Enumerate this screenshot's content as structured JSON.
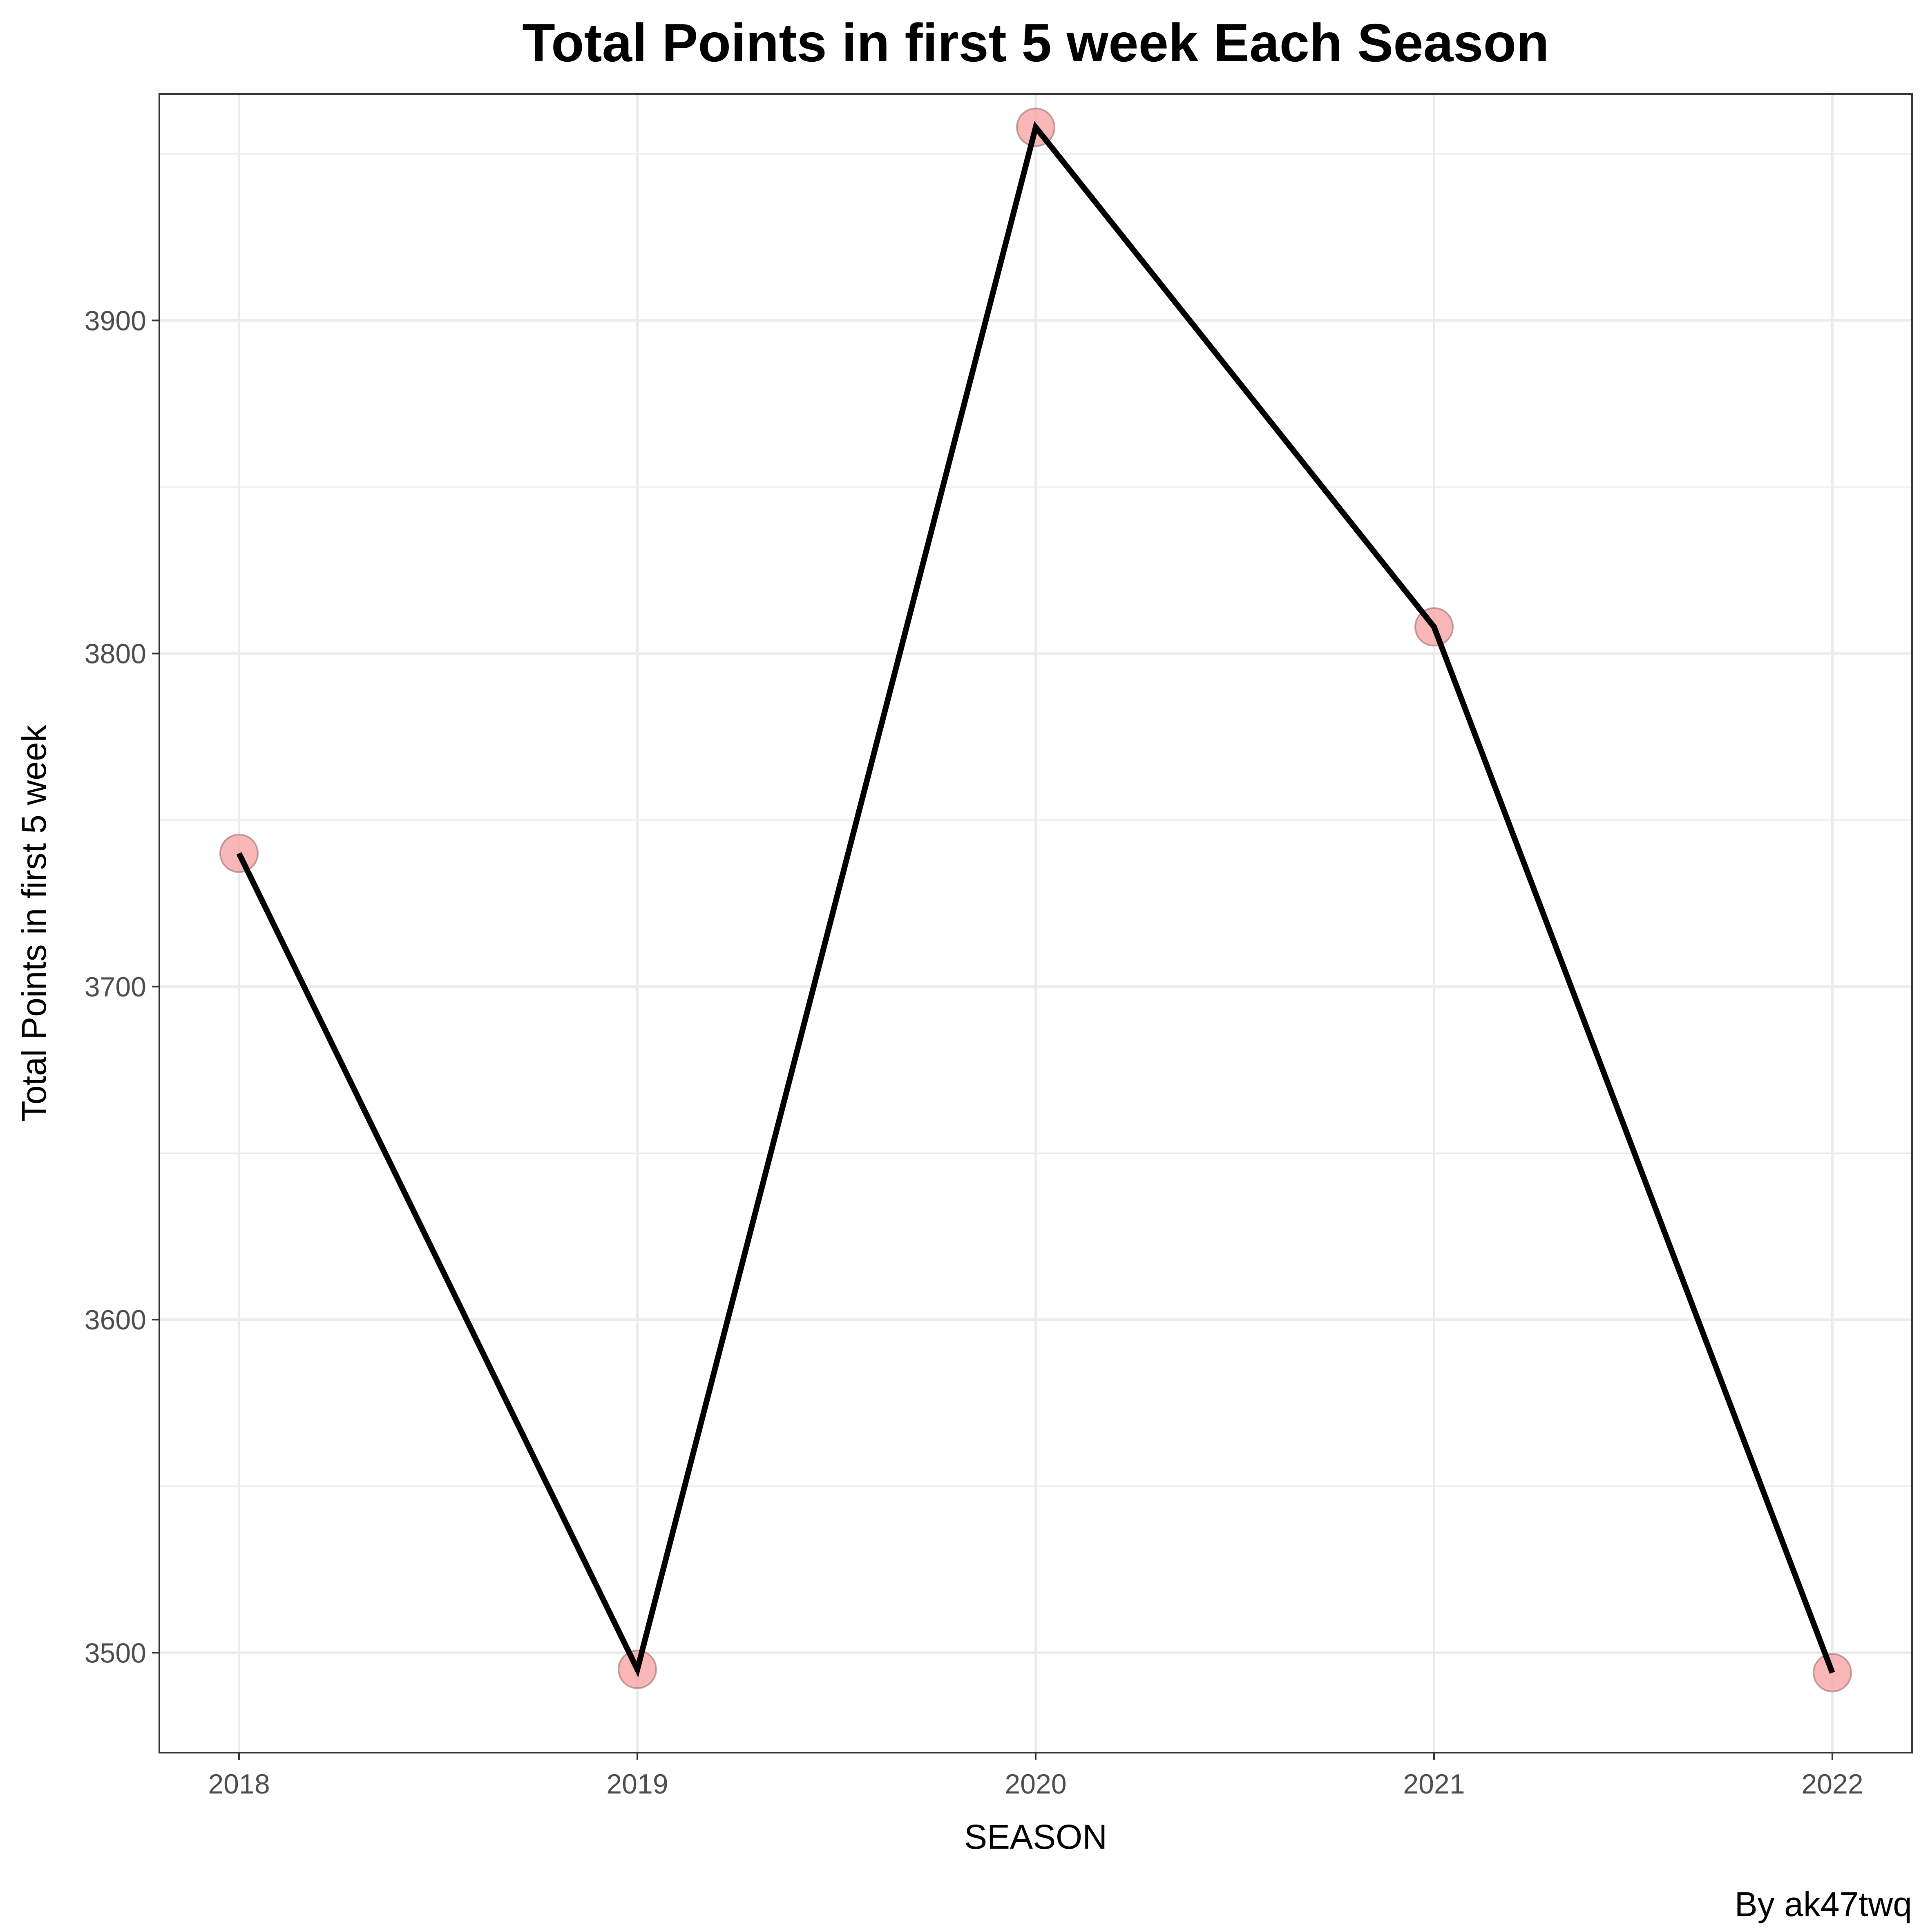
{
  "chart_data": {
    "type": "line",
    "title": "Total Points in first 5 week Each Season",
    "xlabel": "SEASON",
    "ylabel": "Total Points in first 5 week",
    "caption": "By ak47twq",
    "x": [
      2018,
      2019,
      2020,
      2021,
      2022
    ],
    "x_tick_labels": [
      "2018",
      "2019",
      "2020",
      "2021",
      "2022"
    ],
    "y_ticks": [
      3500,
      3600,
      3700,
      3800,
      3900
    ],
    "y_tick_labels": [
      "3500",
      "3600",
      "3700",
      "3800",
      "3900"
    ],
    "xlim": [
      2017.8,
      2022.2
    ],
    "ylim": [
      3470,
      3968
    ],
    "grid": true,
    "series": [
      {
        "values": [
          3740,
          3495,
          3958,
          3808,
          3494
        ],
        "line_color": "#000000",
        "point_color": "#f8a5a5"
      }
    ]
  }
}
